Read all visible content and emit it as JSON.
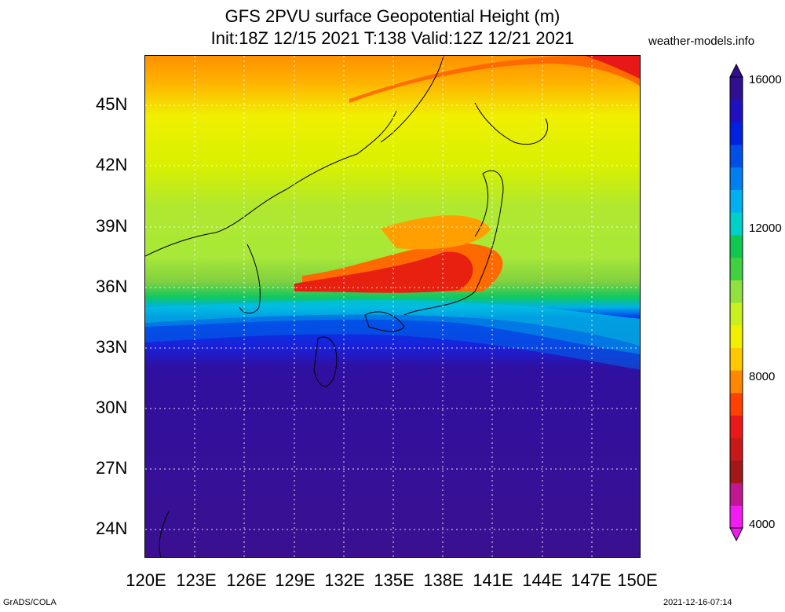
{
  "header": {
    "title_line1": "GFS 2PVU surface Geopotential Height (m)",
    "title_line2": "Init:18Z 12/15 2021 T:138 Valid:12Z 12/21 2021",
    "site": "weather-models.info"
  },
  "map": {
    "lat_labels": [
      "45N",
      "42N",
      "39N",
      "36N",
      "33N",
      "30N",
      "27N",
      "24N"
    ],
    "lon_labels": [
      "120E",
      "123E",
      "126E",
      "129E",
      "132E",
      "135E",
      "138E",
      "141E",
      "144E",
      "147E",
      "150E"
    ]
  },
  "colorbar": {
    "labels": [
      "16000",
      "12000",
      "8000",
      "4000"
    ],
    "colors": [
      "#f01cf0",
      "#c01890",
      "#a01818",
      "#c81818",
      "#e81818",
      "#ff4000",
      "#ff8800",
      "#ffc800",
      "#f0f000",
      "#c8f020",
      "#90e040",
      "#40d040",
      "#10c850",
      "#00d0c8",
      "#00b0f0",
      "#0080f0",
      "#0050e8",
      "#0020e0",
      "#2010c0",
      "#301090"
    ]
  },
  "footer": {
    "left": "GrADS/COLA",
    "right": "2021-12-16-07:14"
  }
}
